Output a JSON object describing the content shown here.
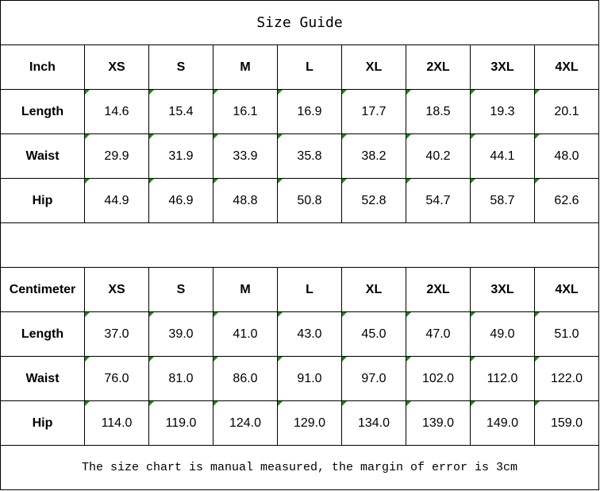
{
  "title": "Size Guide",
  "sizes": [
    "XS",
    "S",
    "M",
    "L",
    "XL",
    "2XL",
    "3XL",
    "4XL"
  ],
  "inch": {
    "unit": "Inch",
    "rows": [
      {
        "label": "Length",
        "values": [
          "14.6",
          "15.4",
          "16.1",
          "16.9",
          "17.7",
          "18.5",
          "19.3",
          "20.1"
        ]
      },
      {
        "label": "Waist",
        "values": [
          "29.9",
          "31.9",
          "33.9",
          "35.8",
          "38.2",
          "40.2",
          "44.1",
          "48.0"
        ]
      },
      {
        "label": "Hip",
        "values": [
          "44.9",
          "46.9",
          "48.8",
          "50.8",
          "52.8",
          "54.7",
          "58.7",
          "62.6"
        ]
      }
    ]
  },
  "cm": {
    "unit": "Centimeter",
    "rows": [
      {
        "label": "Length",
        "values": [
          "37.0",
          "39.0",
          "41.0",
          "43.0",
          "45.0",
          "47.0",
          "49.0",
          "51.0"
        ]
      },
      {
        "label": "Waist",
        "values": [
          "76.0",
          "81.0",
          "86.0",
          "91.0",
          "97.0",
          "102.0",
          "112.0",
          "122.0"
        ]
      },
      {
        "label": "Hip",
        "values": [
          "114.0",
          "119.0",
          "124.0",
          "129.0",
          "134.0",
          "139.0",
          "149.0",
          "159.0"
        ]
      }
    ]
  },
  "note": "The size chart is manual measured, the margin of error is 3cm",
  "colors": {
    "indicator": "#1a8a1a"
  }
}
